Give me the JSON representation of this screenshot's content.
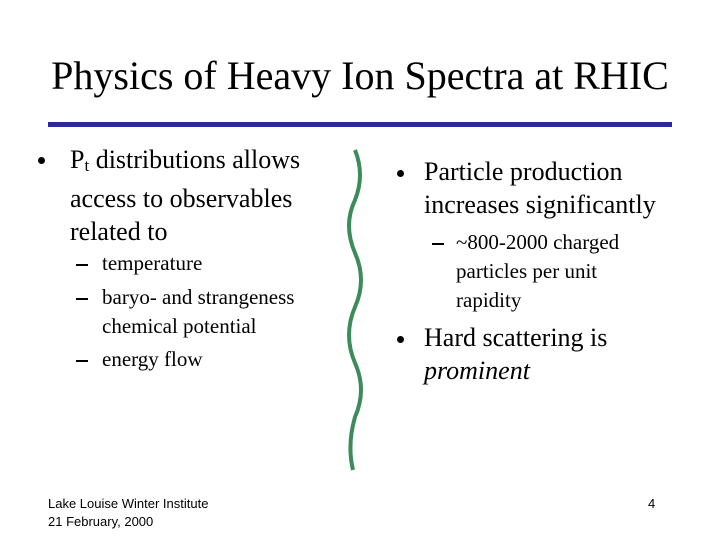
{
  "header": {
    "title": "Physics of Heavy Ion Spectra at RHIC"
  },
  "left": {
    "bullet": {
      "parts": [
        "P",
        "t",
        " distributions allows access to observables related to"
      ]
    },
    "sub_bullets": [
      "temperature",
      "baryo- and strangeness chemical potential",
      "energy flow"
    ]
  },
  "right": {
    "bullets": [
      {
        "text": "Particle production increases significantly",
        "sub_bullets": [
          "~800-2000 charged particles per unit rapidity"
        ]
      },
      {
        "text": "Hard scattering is",
        "emphasis": "prominent"
      }
    ]
  },
  "footer": {
    "lines": [
      "Lake Louise Winter Institute",
      "21 February, 2000"
    ],
    "page": "4"
  }
}
